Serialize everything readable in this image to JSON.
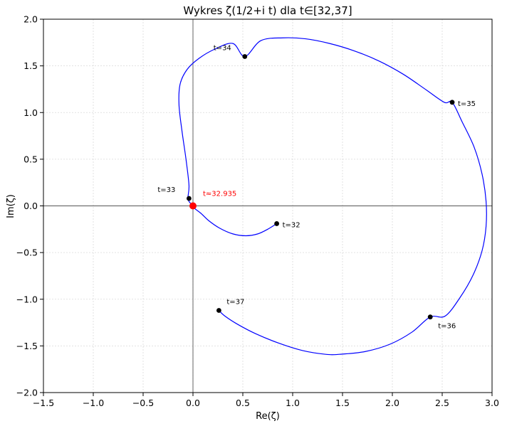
{
  "chart_data": {
    "type": "line",
    "title": "Wykres ζ(1/2+i t) dla t∈[32,37]",
    "xlabel": "Re(ζ)",
    "ylabel": "Im(ζ)",
    "xlim": [
      -1.5,
      3.0
    ],
    "ylim": [
      -2.0,
      2.0
    ],
    "xticks": [
      -1.5,
      -1.0,
      -0.5,
      0.0,
      0.5,
      1.0,
      1.5,
      2.0,
      2.5,
      3.0
    ],
    "xtick_labels": [
      "−1.5",
      "−1.0",
      "−0.5",
      "0.0",
      "0.5",
      "1.0",
      "1.5",
      "2.0",
      "2.5",
      "3.0"
    ],
    "yticks": [
      -2.0,
      -1.5,
      -1.0,
      -0.5,
      0.0,
      0.5,
      1.0,
      1.5,
      2.0
    ],
    "ytick_labels": [
      "−2.0",
      "−1.5",
      "−1.0",
      "−0.5",
      "0.0",
      "0.5",
      "1.0",
      "1.5",
      "2.0"
    ],
    "grid": true,
    "curve_color": "#0000ff",
    "curve": {
      "re": [
        0.84,
        0.75,
        0.65,
        0.53,
        0.4,
        0.27,
        0.16,
        0.08,
        0.02,
        -0.02,
        -0.05,
        -0.04,
        -0.07,
        -0.11,
        -0.14,
        -0.13,
        -0.06,
        0.06,
        0.22,
        0.4,
        0.52,
        0.68,
        0.9,
        1.13,
        1.37,
        1.62,
        1.87,
        2.11,
        2.33,
        2.52,
        2.6,
        2.7,
        2.82,
        2.9,
        2.94,
        2.94,
        2.9,
        2.81,
        2.68,
        2.53,
        2.38,
        2.2,
        1.98,
        1.73,
        1.47,
        1.33,
        1.1,
        0.86,
        0.63,
        0.45,
        0.32,
        0.26
      ],
      "im": [
        -0.19,
        -0.25,
        -0.3,
        -0.32,
        -0.3,
        -0.24,
        -0.16,
        -0.08,
        -0.03,
        0.02,
        0.08,
        0.22,
        0.5,
        0.8,
        1.08,
        1.3,
        1.46,
        1.58,
        1.68,
        1.74,
        1.6,
        1.77,
        1.8,
        1.79,
        1.74,
        1.66,
        1.55,
        1.41,
        1.25,
        1.11,
        1.11,
        0.9,
        0.63,
        0.34,
        0.05,
        -0.22,
        -0.48,
        -0.74,
        -0.98,
        -1.18,
        -1.19,
        -1.35,
        -1.48,
        -1.56,
        -1.59,
        -1.59,
        -1.55,
        -1.47,
        -1.37,
        -1.27,
        -1.18,
        -1.12
      ]
    },
    "markers": [
      {
        "label": "t=32",
        "re": 0.84,
        "im": -0.19,
        "color": "#000000",
        "label_pos": "right"
      },
      {
        "label": "t=33",
        "re": -0.04,
        "im": 0.08,
        "color": "#000000",
        "label_pos": "upper-left"
      },
      {
        "label": "t=34",
        "re": 0.52,
        "im": 1.6,
        "color": "#000000",
        "label_pos": "upper-left"
      },
      {
        "label": "t=35",
        "re": 2.6,
        "im": 1.11,
        "color": "#000000",
        "label_pos": "right"
      },
      {
        "label": "t=36",
        "re": 2.38,
        "im": -1.19,
        "color": "#000000",
        "label_pos": "lower-right"
      },
      {
        "label": "t=37",
        "re": 0.26,
        "im": -1.12,
        "color": "#000000",
        "label_pos": "upper-right"
      }
    ],
    "zero": {
      "label": "t≈32.935",
      "re": 0.0,
      "im": 0.0,
      "color": "#ff0000"
    }
  }
}
